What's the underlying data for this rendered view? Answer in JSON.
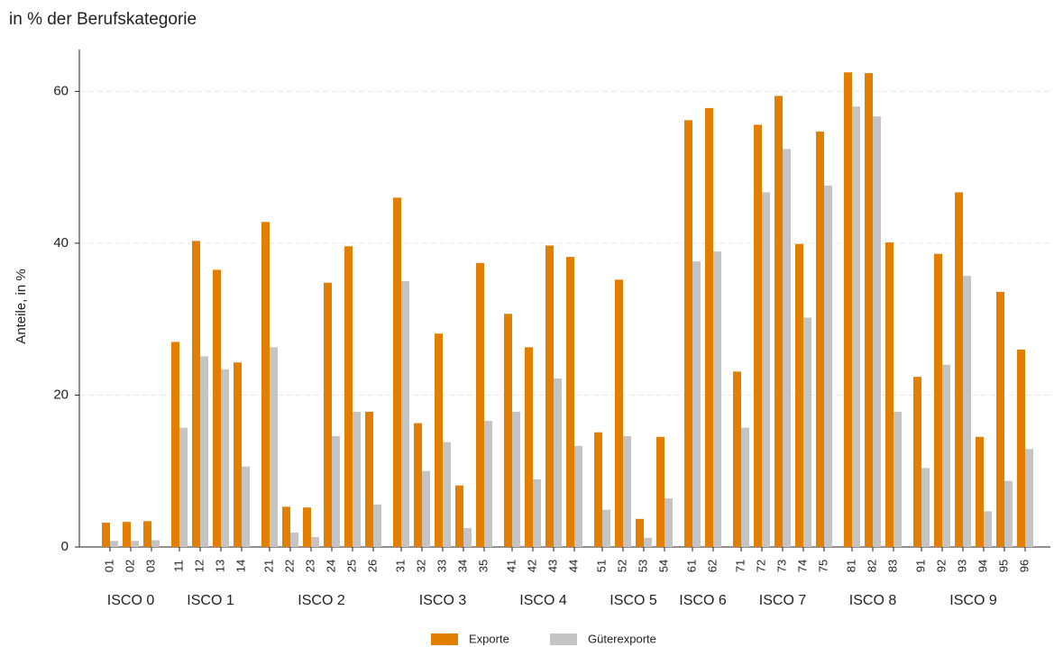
{
  "chart_data": {
    "type": "bar",
    "title": "in % der Berufskategorie",
    "y_label": "Anteile, in %",
    "groups": [
      {
        "label": "ISCO 0",
        "categories": [
          "01",
          "02",
          "03"
        ]
      },
      {
        "label": "ISCO 1",
        "categories": [
          "11",
          "12",
          "13",
          "14"
        ]
      },
      {
        "label": "ISCO 2",
        "categories": [
          "21",
          "22",
          "23",
          "24",
          "25",
          "26"
        ]
      },
      {
        "label": "ISCO 3",
        "categories": [
          "31",
          "32",
          "33",
          "34",
          "35"
        ]
      },
      {
        "label": "ISCO 4",
        "categories": [
          "41",
          "42",
          "43",
          "44"
        ]
      },
      {
        "label": "ISCO 5",
        "categories": [
          "51",
          "52",
          "53",
          "54"
        ]
      },
      {
        "label": "ISCO 6",
        "categories": [
          "61",
          "62"
        ]
      },
      {
        "label": "ISCO 7",
        "categories": [
          "71",
          "72",
          "73",
          "74",
          "75"
        ]
      },
      {
        "label": "ISCO 8",
        "categories": [
          "81",
          "82",
          "83"
        ]
      },
      {
        "label": "ISCO 9",
        "categories": [
          "91",
          "92",
          "93",
          "94",
          "95",
          "96"
        ]
      }
    ],
    "series": [
      {
        "name": "Exporte",
        "color": "#e37f00",
        "values": [
          3.2,
          3.3,
          3.4,
          27.0,
          40.3,
          36.5,
          24.3,
          42.8,
          5.3,
          5.2,
          34.8,
          39.6,
          17.8,
          46.0,
          16.3,
          28.1,
          8.1,
          37.4,
          30.7,
          26.3,
          39.7,
          38.2,
          15.1,
          35.2,
          3.7,
          14.5,
          56.2,
          57.8,
          23.1,
          55.6,
          59.4,
          39.9,
          54.7,
          62.5,
          62.4,
          40.1,
          22.4,
          38.6,
          46.7,
          14.5,
          33.6,
          26.0
        ]
      },
      {
        "name": "Güterexporte",
        "color": "#c4c4c4",
        "values": [
          0.8,
          0.8,
          0.9,
          15.7,
          25.1,
          23.4,
          10.6,
          26.3,
          1.9,
          1.3,
          14.6,
          17.8,
          5.6,
          35.0,
          10.0,
          13.8,
          2.5,
          16.6,
          17.8,
          8.9,
          22.2,
          13.3,
          4.9,
          14.6,
          1.2,
          6.4,
          37.6,
          38.9,
          15.7,
          46.7,
          52.4,
          30.2,
          47.6,
          58.0,
          56.7,
          17.8,
          10.4,
          24.0,
          35.7,
          4.7,
          8.7,
          12.9
        ]
      }
    ],
    "ylim": [
      0,
      65.5
    ],
    "yticks": [
      0,
      20,
      40,
      60
    ],
    "grid": true
  }
}
